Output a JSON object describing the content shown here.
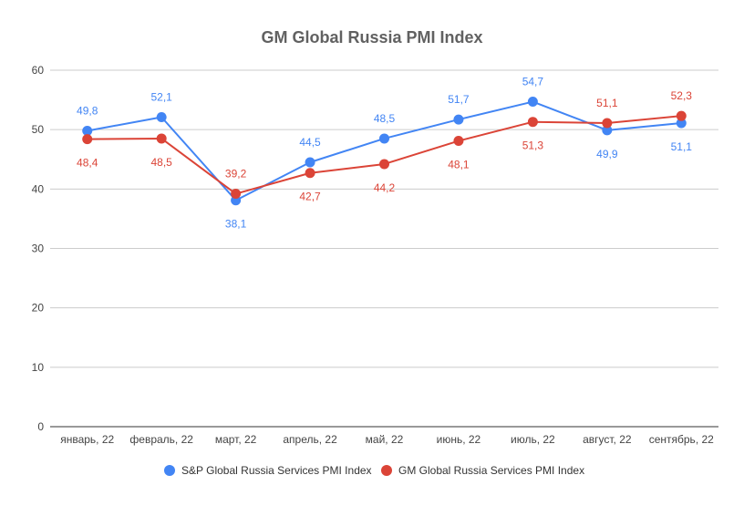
{
  "chart_data": {
    "type": "line",
    "title": "GM Global Russia PMI Index",
    "xlabel": "",
    "ylabel": "",
    "categories": [
      "январь, 22",
      "февраль, 22",
      "март, 22",
      "апрель, 22",
      "май, 22",
      "июнь, 22",
      "июль, 22",
      "август, 22",
      "сентябрь, 22"
    ],
    "ylim": [
      0,
      60
    ],
    "yticks": [
      0,
      10,
      20,
      30,
      40,
      50,
      60
    ],
    "grid": true,
    "legend_position": "bottom",
    "series": [
      {
        "name": "S&P Global Russia Services PMI Index",
        "color": "#4285f4",
        "values": [
          49.8,
          52.1,
          38.1,
          44.5,
          48.5,
          51.7,
          54.7,
          49.9,
          51.1
        ],
        "labels": [
          "49,8",
          "52,1",
          "38,1",
          "44,5",
          "48,5",
          "51,7",
          "54,7",
          "49,9",
          "51,1"
        ]
      },
      {
        "name": "GM Global Russia Services PMI Index",
        "color": "#db4437",
        "values": [
          48.4,
          48.5,
          39.2,
          42.7,
          44.2,
          48.1,
          51.3,
          51.1,
          52.3
        ],
        "labels": [
          "48,4",
          "48,5",
          "39,2",
          "42,7",
          "44,2",
          "48,1",
          "51,3",
          "51,1",
          "52,3"
        ]
      }
    ]
  }
}
